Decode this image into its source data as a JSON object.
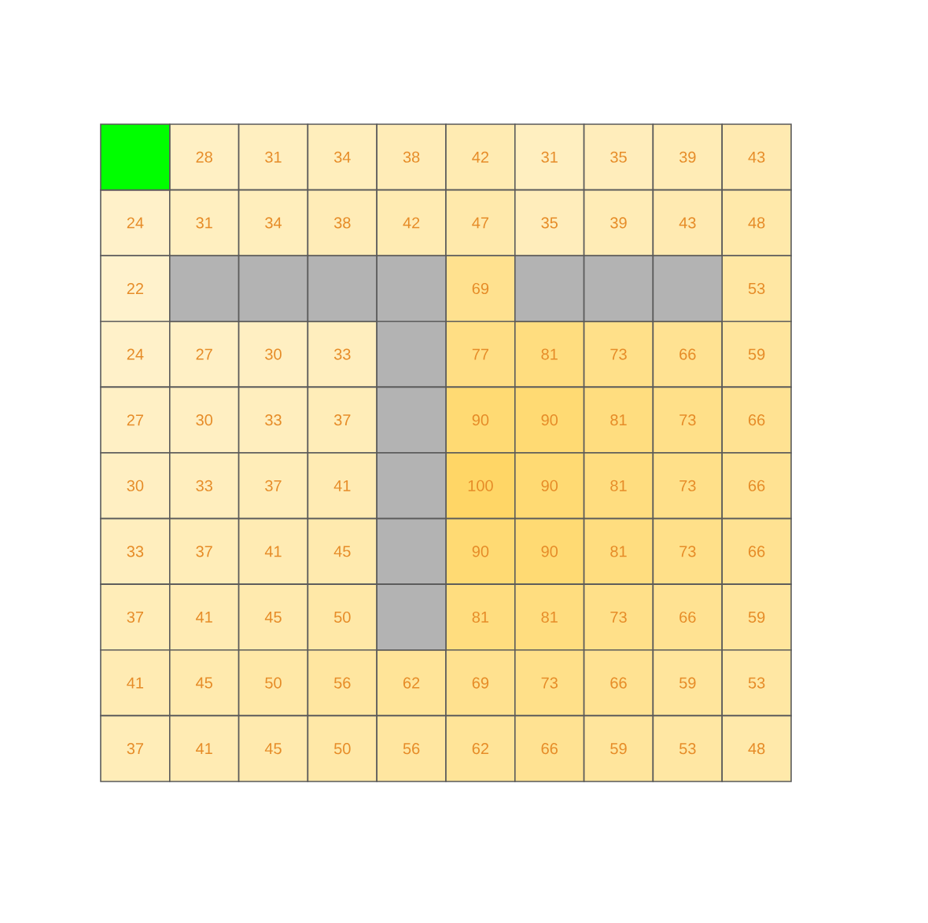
{
  "chart_data": {
    "type": "heatmap",
    "categories": [
      null,
      null,
      null,
      null,
      null,
      null,
      null,
      null,
      null,
      null
    ],
    "y_categories": [
      null,
      null,
      null,
      null,
      null,
      null,
      null,
      null,
      null,
      null
    ],
    "cells": [
      [
        null,
        28,
        31,
        34,
        38,
        42,
        31,
        35,
        39,
        43
      ],
      [
        24,
        31,
        34,
        38,
        42,
        47,
        35,
        39,
        43,
        48
      ],
      [
        22,
        null,
        null,
        null,
        null,
        69,
        null,
        null,
        null,
        53
      ],
      [
        24,
        27,
        30,
        33,
        null,
        77,
        81,
        73,
        66,
        59
      ],
      [
        27,
        30,
        33,
        37,
        null,
        90,
        90,
        81,
        73,
        66
      ],
      [
        30,
        33,
        37,
        41,
        null,
        100,
        90,
        81,
        73,
        66
      ],
      [
        33,
        37,
        41,
        45,
        null,
        90,
        90,
        81,
        73,
        66
      ],
      [
        37,
        41,
        45,
        50,
        null,
        81,
        81,
        73,
        66,
        59
      ],
      [
        41,
        45,
        50,
        56,
        62,
        69,
        73,
        66,
        59,
        53
      ],
      [
        37,
        41,
        45,
        50,
        56,
        62,
        66,
        59,
        53,
        48
      ]
    ],
    "cell_labels": [
      [
        null,
        "28",
        "31",
        "34",
        "38",
        "42",
        "31",
        "35",
        "39",
        "43"
      ],
      [
        "24",
        "31",
        "34",
        "38",
        "42",
        "47",
        "35",
        "39",
        "43",
        "48"
      ],
      [
        "22",
        null,
        null,
        null,
        null,
        "69",
        null,
        null,
        null,
        "53"
      ],
      [
        "24",
        "27",
        "30",
        "33",
        null,
        "77",
        "81",
        "73",
        "66",
        "59"
      ],
      [
        "27",
        "30",
        "33",
        "37",
        null,
        "90",
        "90",
        "81",
        "73",
        "66"
      ],
      [
        "30",
        "33",
        "37",
        "41",
        null,
        "100",
        "90",
        "81",
        "73",
        "66"
      ],
      [
        "33",
        "37",
        "41",
        "45",
        null,
        "90",
        "90",
        "81",
        "73",
        "66"
      ],
      [
        "37",
        "41",
        "45",
        "50",
        null,
        "81",
        "81",
        "73",
        "66",
        "59"
      ],
      [
        "41",
        "45",
        "50",
        "56",
        "62",
        "69",
        "73",
        "66",
        "59",
        "53"
      ],
      [
        "37",
        "41",
        "45",
        "50",
        "56",
        "62",
        "66",
        "59",
        "53",
        "48"
      ]
    ]
  }
}
